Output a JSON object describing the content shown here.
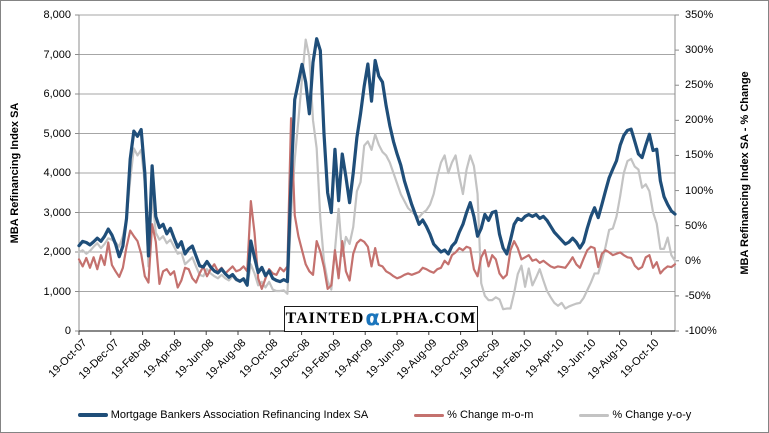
{
  "chart_data": {
    "type": "line",
    "title": "",
    "legend_position": "bottom",
    "gridlines": "horizontal",
    "x_axis": {
      "frequency": "weekly",
      "tick_labels": [
        "19-Oct-07",
        "19-Dec-07",
        "19-Feb-08",
        "19-Apr-08",
        "19-Jun-08",
        "19-Aug-08",
        "19-Oct-08",
        "19-Dec-08",
        "19-Feb-09",
        "19-Apr-09",
        "19-Jun-09",
        "19-Aug-09",
        "19-Oct-09",
        "19-Dec-09",
        "19-Feb-10",
        "19-Apr-10",
        "19-Jun-10",
        "19-Aug-10",
        "19-Oct-10"
      ]
    },
    "y_left": {
      "label": "MBA Refinancing Index SA",
      "min": 0,
      "max": 8000,
      "tick_step": 1000,
      "tick_labels": [
        "0",
        "1,000",
        "2,000",
        "3,000",
        "4,000",
        "5,000",
        "6,000",
        "7,000",
        "8,000"
      ]
    },
    "y_right": {
      "label": "MBA Refinancing Index SA -  % Change",
      "min": -100,
      "max": 350,
      "tick_step": 50,
      "tick_labels": [
        "-100%",
        "-50%",
        "0%",
        "50%",
        "100%",
        "150%",
        "200%",
        "250%",
        "300%",
        "350%"
      ]
    },
    "series": [
      {
        "name": "Mortgage Bankers Association Refinancing Index SA",
        "axis": "left",
        "color": "#1F4E79",
        "width": 3.2,
        "values": [
          2160,
          2270,
          2240,
          2180,
          2260,
          2350,
          2270,
          2400,
          2580,
          2430,
          2200,
          1880,
          2150,
          2850,
          4350,
          5060,
          4930,
          5100,
          4000,
          1900,
          4180,
          2900,
          2620,
          2700,
          2460,
          2600,
          2350,
          2120,
          2260,
          1950,
          2080,
          2150,
          1900,
          1650,
          1620,
          1760,
          1620,
          1520,
          1470,
          1570,
          1450,
          1360,
          1430,
          1310,
          1260,
          1320,
          1160,
          2280,
          1860,
          1480,
          1610,
          1400,
          1520,
          1330,
          1280,
          1250,
          1300,
          1250,
          3800,
          5860,
          6300,
          6750,
          6300,
          5500,
          6800,
          7400,
          7100,
          5000,
          3500,
          3000,
          4600,
          3300,
          4480,
          3900,
          3250,
          4000,
          4900,
          5500,
          6200,
          6760,
          5820,
          6850,
          6450,
          6300,
          5700,
          5200,
          4800,
          4480,
          4200,
          3800,
          3500,
          3200,
          2950,
          2700,
          2810,
          2650,
          2450,
          2200,
          2100,
          2000,
          2050,
          1950,
          2150,
          2250,
          2500,
          2700,
          3000,
          3250,
          2900,
          2400,
          2600,
          2950,
          2800,
          3000,
          3030,
          2450,
          2100,
          1950,
          2300,
          2700,
          2850,
          2800,
          2900,
          2950,
          2900,
          2950,
          2850,
          2900,
          2800,
          2650,
          2500,
          2400,
          2300,
          2200,
          2250,
          2350,
          2250,
          2100,
          2250,
          2600,
          2900,
          3120,
          2870,
          3200,
          3550,
          3880,
          4100,
          4310,
          4700,
          4950,
          5080,
          5110,
          4800,
          4480,
          4390,
          4700,
          4980,
          4570,
          4600,
          3800,
          3400,
          3200,
          3040,
          2960
        ]
      },
      {
        "name": "% Change m-o-m",
        "axis": "right",
        "color": "#C4716E",
        "width": 2.2,
        "values": [
          2,
          -8,
          4,
          -10,
          5,
          -12,
          8,
          -6,
          26,
          -6,
          -15,
          -23,
          -10,
          20,
          43,
          35,
          28,
          10,
          -22,
          -31,
          52,
          27,
          -33,
          -15,
          -12,
          -20,
          -15,
          -38,
          -28,
          -10,
          -12,
          -25,
          -31,
          -18,
          -8,
          -22,
          -12,
          -5,
          -15,
          -10,
          -18,
          -13,
          -8,
          -15,
          -13,
          -8,
          -15,
          85,
          40,
          -25,
          -40,
          -25,
          -12,
          -18,
          -20,
          -10,
          -15,
          -8,
          203,
          65,
          35,
          15,
          -5,
          -15,
          -20,
          28,
          13,
          -9,
          -40,
          -35,
          15,
          -25,
          28,
          -15,
          -28,
          10,
          25,
          30,
          27,
          20,
          -8,
          18,
          -6,
          -8,
          -15,
          -18,
          -22,
          -25,
          -23,
          -20,
          -18,
          -20,
          -18,
          -16,
          -10,
          -12,
          -15,
          -17,
          -12,
          -10,
          0,
          -5,
          8,
          12,
          18,
          15,
          20,
          18,
          -12,
          -22,
          5,
          15,
          -8,
          8,
          2,
          -18,
          -25,
          -20,
          15,
          28,
          18,
          2,
          5,
          8,
          0,
          2,
          -3,
          0,
          -4,
          -8,
          -10,
          -8,
          -9,
          -10,
          -3,
          5,
          -5,
          -10,
          3,
          15,
          20,
          18,
          -9,
          10,
          15,
          12,
          8,
          10,
          12,
          8,
          5,
          4,
          -7,
          -12,
          -9,
          5,
          8,
          -10,
          -2,
          -18,
          -12,
          -8,
          -9,
          -5
        ]
      },
      {
        "name": "% Change y-o-y",
        "axis": "right",
        "color": "#C3C3C3",
        "width": 2.2,
        "values": [
          12,
          15,
          10,
          14,
          20,
          25,
          18,
          24,
          32,
          30,
          26,
          20,
          35,
          60,
          115,
          160,
          150,
          158,
          110,
          -8,
          95,
          40,
          30,
          35,
          25,
          30,
          20,
          10,
          12,
          -5,
          0,
          5,
          -8,
          -20,
          -22,
          -12,
          -18,
          -22,
          -25,
          -20,
          -25,
          -28,
          -22,
          -28,
          -30,
          -25,
          -35,
          -5,
          -18,
          -35,
          -30,
          -38,
          -30,
          -41,
          -43,
          -43,
          -42,
          -47,
          67,
          144,
          200,
          260,
          315,
          290,
          200,
          160,
          60,
          -1,
          -29,
          -41,
          15,
          74,
          7,
          34,
          24,
          48,
          99,
          112,
          164,
          170,
          158,
          180,
          165,
          155,
          150,
          140,
          125,
          110,
          95,
          85,
          75,
          70,
          65,
          62,
          68,
          72,
          80,
          95,
          120,
          140,
          150,
          125,
          140,
          150,
          120,
          95,
          130,
          150,
          135,
          95,
          -32,
          -50,
          -56,
          -56,
          -52,
          -55,
          -69,
          -68,
          -68,
          -46,
          -19,
          -7,
          -37,
          -11,
          -35,
          -24,
          -12,
          -28,
          -43,
          -52,
          -60,
          -64,
          -60,
          -68,
          -65,
          -63,
          -61,
          -60,
          -53,
          -42,
          -31,
          -18,
          -18,
          0,
          20,
          44,
          46,
          63,
          92,
          125,
          142,
          145,
          134,
          130,
          104,
          109,
          99,
          69,
          53,
          17,
          17,
          33,
          8,
          0
        ]
      }
    ]
  },
  "watermark": {
    "prefix": "TAINTED",
    "alpha": "α",
    "suffix": "LPHA.COM",
    "alpha_color": "#1B75BC"
  },
  "style_colors": {
    "gridline": "#A6A6A6",
    "plot_frame": "#8C8C8C",
    "x_axis_line": "#404040",
    "text": "#000000"
  }
}
